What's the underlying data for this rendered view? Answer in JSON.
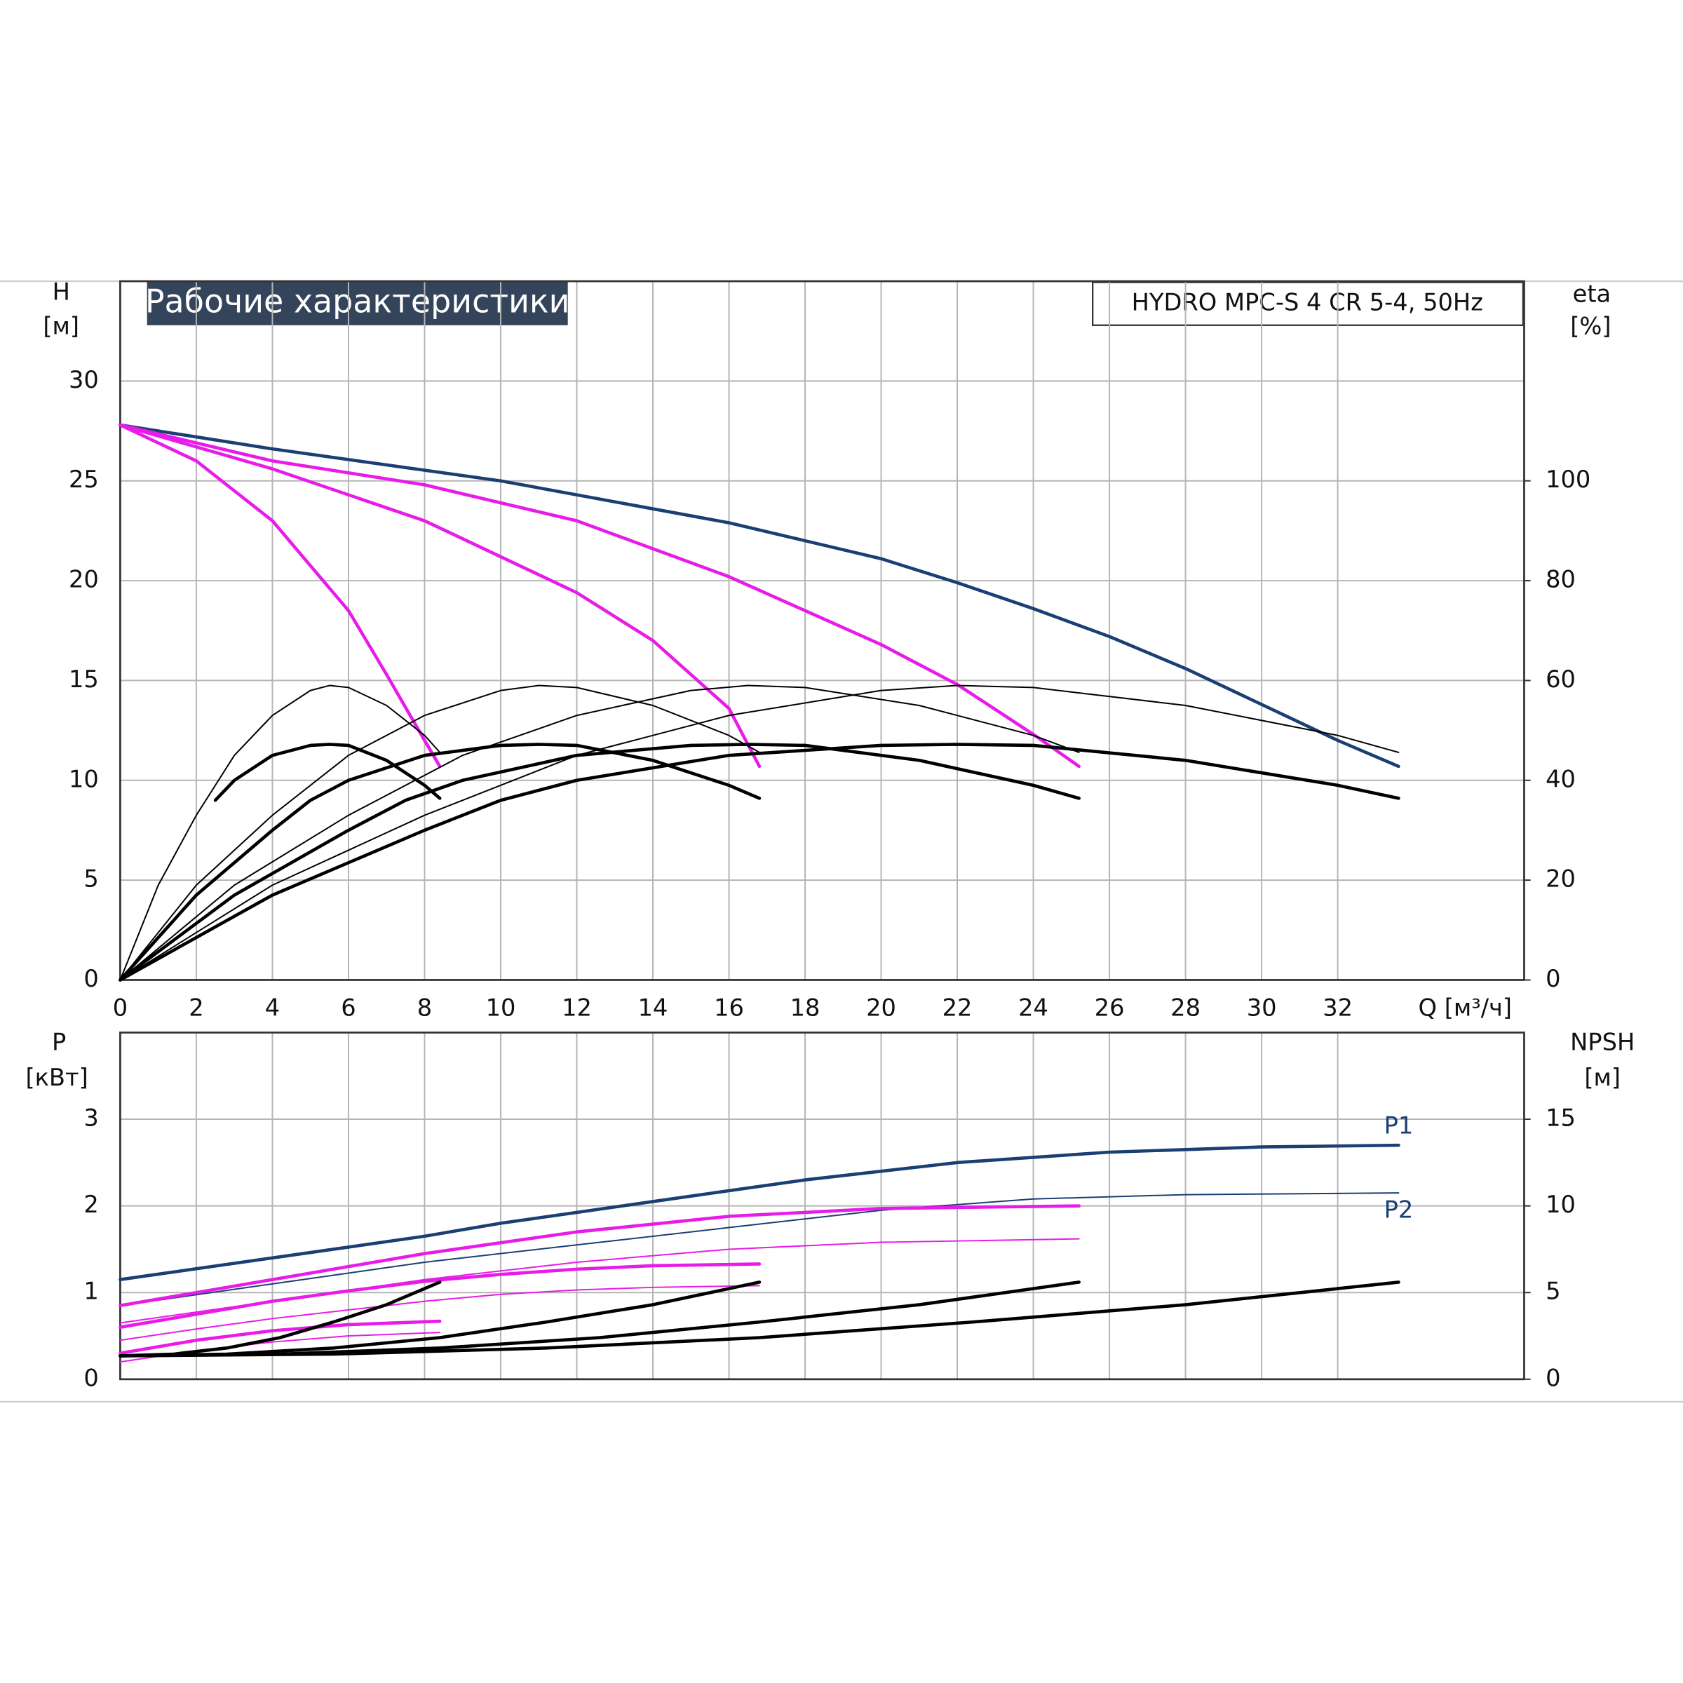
{
  "chart_data": [
    {
      "type": "line",
      "title": "Рабочие характеристики",
      "subtitle": "HYDRO MPC-S 4 CR 5-4, 50Hz",
      "ylabel": "H",
      "yunit": "[м]",
      "y2label": "eta",
      "y2unit": "[%]",
      "xlabel": "Q [м³/ч]",
      "xlim": [
        0,
        36.9
      ],
      "xticks": [
        0,
        2,
        4,
        6,
        8,
        10,
        12,
        14,
        16,
        18,
        20,
        22,
        24,
        26,
        28,
        30,
        32
      ],
      "ylim": [
        0,
        35
      ],
      "yticks": [
        0,
        5,
        10,
        15,
        20,
        25,
        30
      ],
      "y2lim": [
        0,
        140
      ],
      "y2ticks": [
        0,
        20,
        40,
        60,
        80,
        100
      ],
      "grid": true,
      "series": [
        {
          "color": "#1b3f73",
          "thick": true,
          "x": [
            0,
            4,
            10,
            16,
            20,
            22,
            24,
            26,
            28,
            30,
            32,
            33.6
          ],
          "y": [
            27.8,
            26.6,
            25.0,
            22.9,
            21.1,
            19.9,
            18.6,
            17.2,
            15.6,
            13.8,
            12.0,
            10.7
          ]
        },
        {
          "color": "#e81be8",
          "thick": true,
          "x": [
            0,
            4,
            8,
            12,
            16,
            20,
            22,
            24,
            25.2
          ],
          "y": [
            27.8,
            26.0,
            24.8,
            23.0,
            20.2,
            16.8,
            14.8,
            12.3,
            10.7
          ]
        },
        {
          "color": "#e81be8",
          "thick": true,
          "x": [
            0,
            4,
            8,
            12,
            14,
            16,
            16.8
          ],
          "y": [
            27.8,
            25.6,
            23.0,
            19.4,
            17.0,
            13.6,
            10.7
          ]
        },
        {
          "color": "#e81be8",
          "thick": true,
          "x": [
            0,
            2,
            4,
            6,
            7,
            8,
            8.4
          ],
          "y": [
            27.8,
            26.0,
            23.0,
            18.5,
            15.3,
            12.0,
            10.7
          ]
        },
        {
          "color": "#000000",
          "thick": false,
          "axis": "y2",
          "x": [
            0,
            1,
            2,
            3,
            4,
            5,
            5.5,
            6,
            7,
            8,
            8.4
          ],
          "y": [
            0,
            19,
            33,
            45,
            53,
            58,
            59,
            58.6,
            55,
            49,
            45.6
          ]
        },
        {
          "color": "#000000",
          "thick": false,
          "axis": "y2",
          "x": [
            0,
            2,
            4,
            6,
            8,
            10,
            11,
            12,
            14,
            16,
            16.8
          ],
          "y": [
            0,
            19,
            33,
            45,
            53,
            58,
            59,
            58.6,
            55,
            49,
            45.6
          ]
        },
        {
          "color": "#000000",
          "thick": false,
          "axis": "y2",
          "x": [
            0,
            3,
            6,
            9,
            12,
            15,
            16.5,
            18,
            21,
            24,
            25.2
          ],
          "y": [
            0,
            19,
            33,
            45,
            53,
            58,
            59,
            58.6,
            55,
            49,
            45.6
          ]
        },
        {
          "color": "#000000",
          "thick": false,
          "axis": "y2",
          "x": [
            0,
            4,
            8,
            12,
            16,
            20,
            22,
            24,
            28,
            32,
            33.6
          ],
          "y": [
            0,
            19,
            33,
            45,
            53,
            58,
            59,
            58.6,
            55,
            49,
            45.6
          ]
        },
        {
          "color": "#000000",
          "thick": true,
          "axis": "y2",
          "x": [
            2.5,
            3,
            4,
            5,
            5.5,
            6,
            7,
            8,
            8.4
          ],
          "y": [
            36,
            40,
            45,
            47,
            47.2,
            47,
            44,
            39,
            36.4
          ]
        },
        {
          "color": "#000000",
          "thick": true,
          "axis": "y2",
          "x": [
            0,
            2,
            4,
            5,
            6,
            8,
            10,
            11,
            12,
            14,
            16,
            16.8
          ],
          "y": [
            0,
            17,
            30,
            36,
            40,
            45,
            47,
            47.2,
            47,
            44,
            39,
            36.4
          ]
        },
        {
          "color": "#000000",
          "thick": true,
          "axis": "y2",
          "x": [
            0,
            3,
            6,
            7.5,
            9,
            12,
            15,
            16.5,
            18,
            21,
            24,
            25.2
          ],
          "y": [
            0,
            17,
            30,
            36,
            40,
            45,
            47,
            47.2,
            47,
            44,
            39,
            36.4
          ]
        },
        {
          "color": "#000000",
          "thick": true,
          "axis": "y2",
          "x": [
            0,
            4,
            8,
            10,
            12,
            16,
            20,
            22,
            24,
            28,
            32,
            33.6
          ],
          "y": [
            0,
            17,
            30,
            36,
            40,
            45,
            47,
            47.2,
            47,
            44,
            39,
            36.4
          ]
        }
      ]
    },
    {
      "type": "line",
      "ylabel": "P",
      "yunit": "[кВт]",
      "y2label": "NPSH",
      "y2unit": "[м]",
      "ylim": [
        0,
        4
      ],
      "yticks": [
        0,
        1,
        2,
        3
      ],
      "y2lim": [
        0,
        20
      ],
      "y2ticks": [
        0,
        5,
        10,
        15
      ],
      "grid": true,
      "series": [
        {
          "name": "P1",
          "label_pos": "above",
          "color": "#1b3f73",
          "thick": true,
          "x": [
            0,
            4,
            8,
            10,
            14,
            18,
            22,
            26,
            30,
            33.6
          ],
          "y": [
            1.15,
            1.4,
            1.65,
            1.8,
            2.05,
            2.3,
            2.5,
            2.62,
            2.68,
            2.7
          ]
        },
        {
          "name": "P2",
          "label_pos": "below",
          "color": "#1b3f73",
          "thick": false,
          "x": [
            0,
            4,
            8,
            12,
            16,
            20,
            24,
            28,
            33.6
          ],
          "y": [
            0.85,
            1.1,
            1.35,
            1.55,
            1.75,
            1.95,
            2.08,
            2.13,
            2.15
          ]
        },
        {
          "color": "#e81be8",
          "thick": true,
          "x": [
            0,
            4,
            8,
            12,
            16,
            20,
            25.2
          ],
          "y": [
            0.85,
            1.15,
            1.45,
            1.7,
            1.88,
            1.97,
            2.0
          ]
        },
        {
          "color": "#e81be8",
          "thick": false,
          "x": [
            0,
            4,
            8,
            12,
            16,
            20,
            25.2
          ],
          "y": [
            0.65,
            0.9,
            1.15,
            1.35,
            1.5,
            1.58,
            1.62
          ]
        },
        {
          "color": "#e81be8",
          "thick": true,
          "x": [
            0,
            2,
            4,
            6,
            8,
            10,
            12,
            14,
            16.8
          ],
          "y": [
            0.6,
            0.75,
            0.9,
            1.02,
            1.13,
            1.21,
            1.27,
            1.31,
            1.33
          ]
        },
        {
          "color": "#e81be8",
          "thick": false,
          "x": [
            0,
            2,
            4,
            6,
            8,
            10,
            12,
            14,
            16.8
          ],
          "y": [
            0.45,
            0.58,
            0.7,
            0.8,
            0.9,
            0.98,
            1.03,
            1.06,
            1.08
          ]
        },
        {
          "color": "#e81be8",
          "thick": true,
          "x": [
            0,
            2,
            4,
            6,
            8.4
          ],
          "y": [
            0.3,
            0.45,
            0.56,
            0.63,
            0.67
          ]
        },
        {
          "color": "#e81be8",
          "thick": false,
          "x": [
            0,
            2,
            4,
            6,
            8.4
          ],
          "y": [
            0.2,
            0.33,
            0.43,
            0.5,
            0.54
          ]
        },
        {
          "color": "#000000",
          "thick": true,
          "axis": "y2",
          "x": [
            0,
            1.4,
            2.8,
            4.2,
            5.6,
            7,
            8.4
          ],
          "y": [
            1.35,
            1.45,
            1.8,
            2.4,
            3.3,
            4.3,
            5.6
          ]
        },
        {
          "color": "#000000",
          "thick": true,
          "axis": "y2",
          "x": [
            0,
            2.8,
            5.6,
            8.4,
            11.2,
            14,
            16.8
          ],
          "y": [
            1.35,
            1.45,
            1.8,
            2.4,
            3.3,
            4.3,
            5.6
          ]
        },
        {
          "color": "#000000",
          "thick": true,
          "axis": "y2",
          "x": [
            0,
            4.2,
            8.4,
            12.6,
            16.8,
            21,
            25.2
          ],
          "y": [
            1.35,
            1.45,
            1.8,
            2.4,
            3.3,
            4.3,
            5.6
          ]
        },
        {
          "color": "#000000",
          "thick": true,
          "axis": "y2",
          "x": [
            0,
            5.6,
            11.2,
            16.8,
            22.4,
            28,
            33.6
          ],
          "y": [
            1.35,
            1.45,
            1.8,
            2.4,
            3.3,
            4.3,
            5.6
          ]
        }
      ]
    }
  ]
}
